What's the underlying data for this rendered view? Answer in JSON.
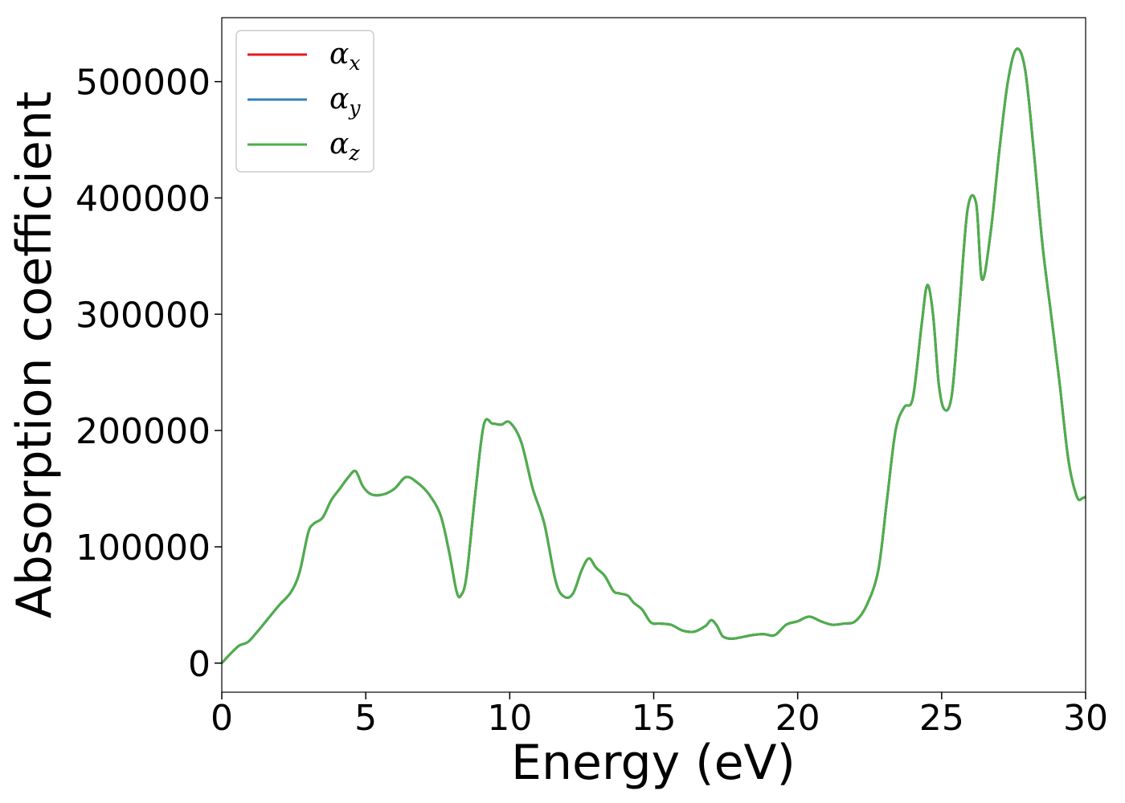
{
  "chart_data": {
    "type": "line",
    "xlabel": "Energy (eV)",
    "ylabel": "Absorption coefficient",
    "xlim": [
      0,
      30
    ],
    "ylim": [
      -25000,
      555000
    ],
    "xticks": [
      0,
      5,
      10,
      15,
      20,
      25,
      30
    ],
    "xtick_labels": [
      "0",
      "5",
      "10",
      "15",
      "20",
      "25",
      "30"
    ],
    "yticks": [
      0,
      100000,
      200000,
      300000,
      400000,
      500000
    ],
    "ytick_labels": [
      "0",
      "100000",
      "200000",
      "300000",
      "400000",
      "500000"
    ],
    "grid": false,
    "legend_position": "top-left",
    "series": [
      {
        "name_base": "α",
        "name_sub": "x",
        "color": "#e41a1c",
        "points": "s"
      },
      {
        "name_base": "α",
        "name_sub": "y",
        "color": "#377eb8",
        "points": "s"
      },
      {
        "name_base": "α",
        "name_sub": "z",
        "color": "#4daf4a",
        "points": "s"
      }
    ],
    "shared_x": [
      0,
      0.3,
      0.6,
      0.9,
      1.2,
      1.6,
      2.0,
      2.4,
      2.7,
      3.0,
      3.2,
      3.5,
      3.8,
      4.1,
      4.4,
      4.65,
      4.9,
      5.2,
      5.6,
      6.0,
      6.4,
      6.8,
      7.2,
      7.6,
      7.9,
      8.15,
      8.3,
      8.5,
      8.8,
      9.1,
      9.4,
      9.7,
      10.0,
      10.4,
      10.8,
      11.2,
      11.6,
      11.9,
      12.2,
      12.5,
      12.75,
      13.0,
      13.3,
      13.6,
      13.8,
      14.1,
      14.3,
      14.6,
      14.9,
      15.2,
      15.6,
      16.0,
      16.4,
      16.8,
      17.0,
      17.2,
      17.4,
      17.7,
      18.0,
      18.4,
      18.8,
      19.2,
      19.6,
      20.0,
      20.4,
      20.8,
      21.2,
      21.6,
      22.0,
      22.4,
      22.8,
      23.1,
      23.4,
      23.7,
      24.0,
      24.3,
      24.5,
      24.7,
      24.9,
      25.1,
      25.35,
      25.6,
      25.9,
      26.2,
      26.4,
      26.7,
      27.0,
      27.3,
      27.6,
      27.9,
      28.2,
      28.5,
      28.8,
      29.1,
      29.4,
      29.7,
      29.9,
      30.0
    ],
    "shared_y": [
      0,
      8000,
      15000,
      18000,
      26000,
      38000,
      50000,
      61000,
      78000,
      112000,
      120000,
      125000,
      140000,
      150000,
      160000,
      165000,
      152000,
      145000,
      145000,
      150000,
      160000,
      155000,
      145000,
      127000,
      95000,
      62000,
      58000,
      75000,
      145000,
      205000,
      206000,
      205000,
      207000,
      190000,
      150000,
      120000,
      70000,
      57000,
      60000,
      80000,
      90000,
      82000,
      75000,
      62000,
      60000,
      58000,
      52000,
      46000,
      35000,
      34000,
      33000,
      28000,
      27000,
      32000,
      37000,
      32000,
      23000,
      21000,
      22000,
      24000,
      25000,
      24000,
      33000,
      36000,
      40000,
      36000,
      33000,
      34000,
      36000,
      50000,
      80000,
      140000,
      200000,
      220000,
      228000,
      290000,
      325000,
      300000,
      240000,
      218000,
      230000,
      300000,
      390000,
      395000,
      330000,
      370000,
      440000,
      500000,
      528000,
      510000,
      440000,
      360000,
      300000,
      240000,
      175000,
      143000,
      142000,
      143000
    ]
  }
}
